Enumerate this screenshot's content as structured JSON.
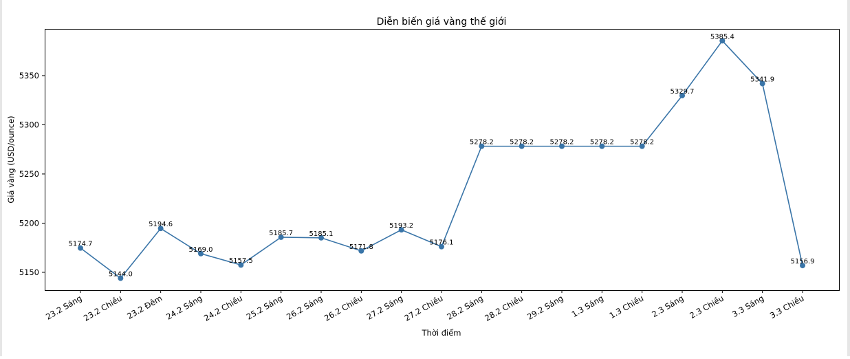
{
  "chart_data": {
    "type": "line",
    "title": "Diễn biến giá vàng thế giới",
    "xlabel": "Thời điểm",
    "ylabel": "Giá vàng (USD/ounce)",
    "categories": [
      "23.2 Sáng",
      "23.2 Chiều",
      "23.2 Đêm",
      "24.2 Sáng",
      "24.2 Chiều",
      "25.2 Sáng",
      "26.2 Sáng",
      "26.2 Chiều",
      "27.2 Sáng",
      "27.2 Chiều",
      "28.2 Sáng",
      "28.2 Chiều",
      "29.2 Sáng",
      "1.3 Sáng",
      "1.3 Chiều",
      "2.3 Sáng",
      "2.3 Chiều",
      "3.3 Sáng",
      "3.3 Chiều"
    ],
    "series": [
      {
        "name": "Giá vàng",
        "color": "#3a75a8",
        "values": [
          5174.7,
          5144.0,
          5194.6,
          5169.0,
          5157.5,
          5185.7,
          5185.1,
          5171.8,
          5193.2,
          5176.1,
          5278.2,
          5278.2,
          5278.2,
          5278.2,
          5278.2,
          5329.7,
          5385.4,
          5341.9,
          5156.9
        ]
      }
    ],
    "yticks": [
      5150,
      5200,
      5250,
      5300,
      5350
    ],
    "ylim": [
      5131.8,
      5397.5
    ],
    "grid": false,
    "legend": null,
    "data_labels": true
  }
}
